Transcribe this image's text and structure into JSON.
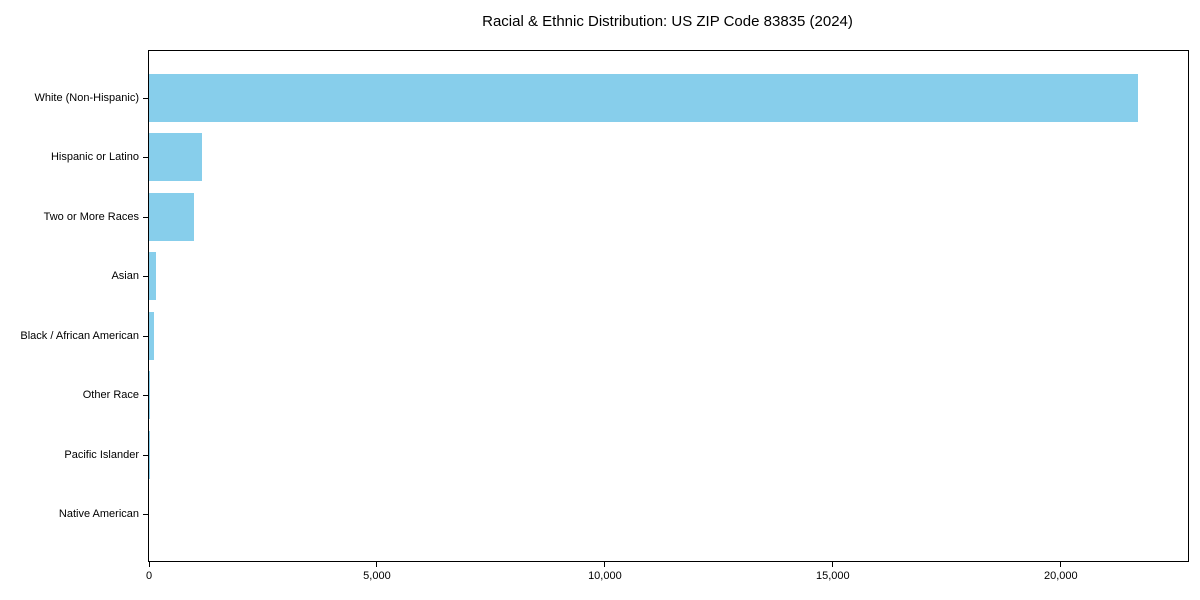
{
  "chart_data": {
    "type": "bar",
    "orientation": "horizontal",
    "title": "Racial & Ethnic Distribution: US ZIP Code 83835 (2024)",
    "categories": [
      "White (Non-Hispanic)",
      "Hispanic or Latino",
      "Two or More Races",
      "Asian",
      "Black / African American",
      "Other Race",
      "Pacific Islander",
      "Native American"
    ],
    "values": [
      21700,
      1160,
      990,
      160,
      100,
      25,
      20,
      0
    ],
    "xlabel": "",
    "ylabel": "",
    "xlim": [
      0,
      22790
    ],
    "x_ticks": [
      0,
      5000,
      10000,
      15000,
      20000
    ],
    "x_tick_labels": [
      "0",
      "5,000",
      "10,000",
      "15,000",
      "20,000"
    ],
    "bar_color": "#87CEEB",
    "grid": false,
    "legend_position": "none"
  }
}
